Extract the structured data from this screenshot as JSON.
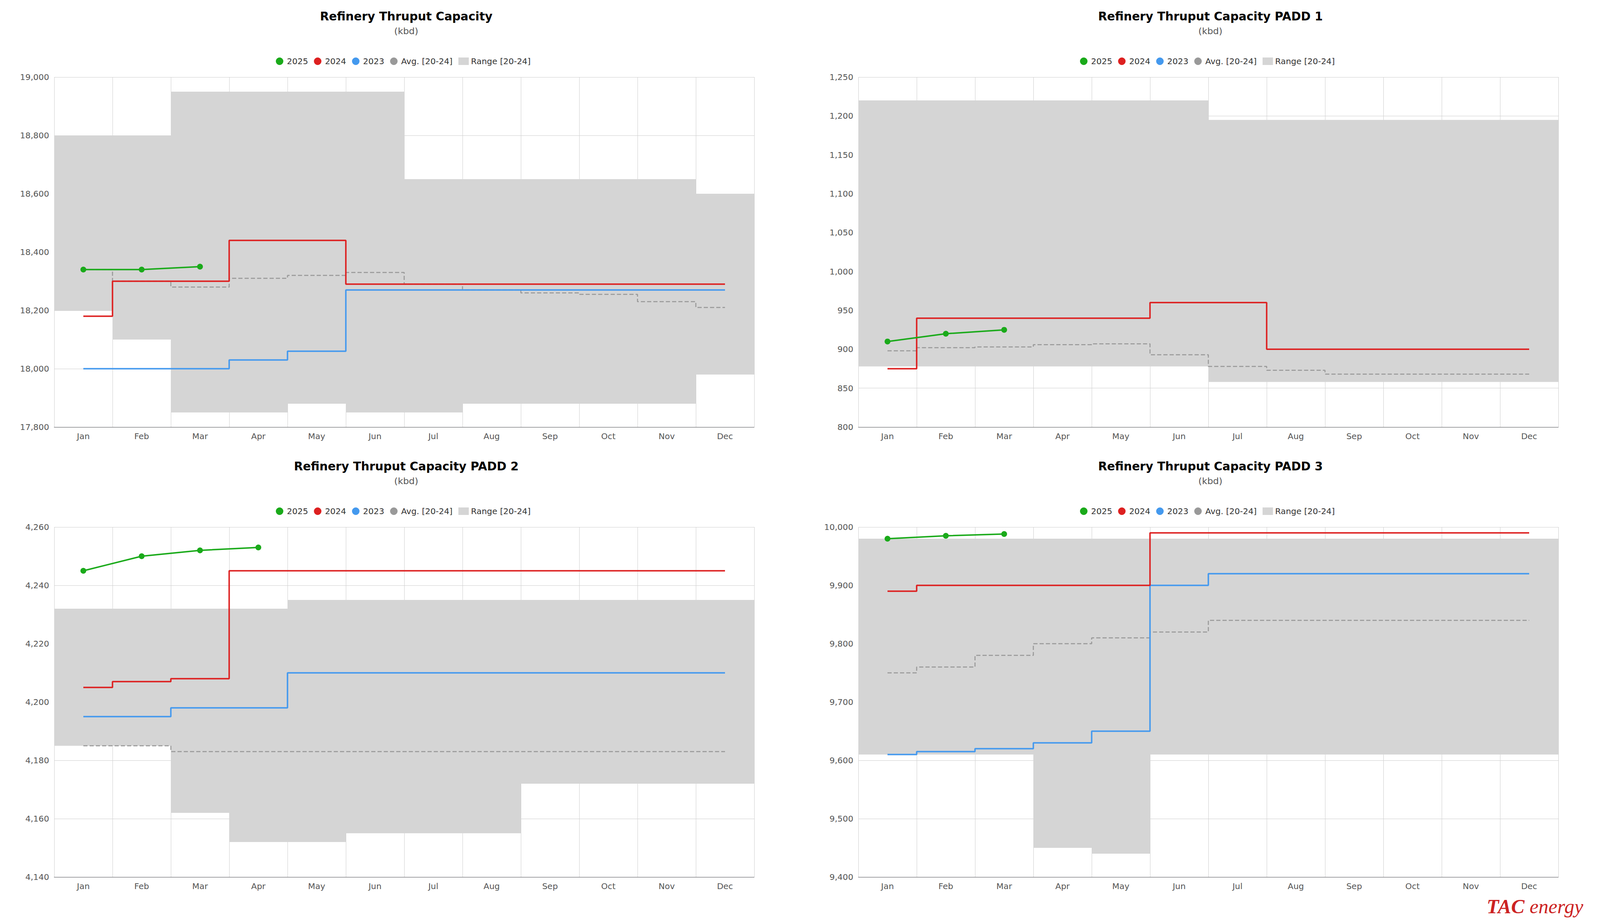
{
  "chart_data": [
    {
      "type": "line",
      "title": "Refinery Thruput Capacity",
      "subtitle": "(kbd)",
      "categories": [
        "Jan",
        "Feb",
        "Mar",
        "Apr",
        "May",
        "Jun",
        "Jul",
        "Aug",
        "Sep",
        "Oct",
        "Nov",
        "Dec"
      ],
      "ylim": [
        17800,
        19000
      ],
      "yticks": [
        {
          "value": 17800,
          "label": "17,800"
        },
        {
          "value": 18000,
          "label": "18,000"
        },
        {
          "value": 18200,
          "label": "18,200"
        },
        {
          "value": 18400,
          "label": "18,400"
        },
        {
          "value": 18600,
          "label": "18,600"
        },
        {
          "value": 18800,
          "label": "18,800"
        },
        {
          "value": 19000,
          "label": "19,000"
        }
      ],
      "grid": true,
      "series": [
        {
          "name": "2025",
          "type": "line",
          "marker": "circle",
          "color": "#1aaa1a",
          "values": [
            18340,
            18340,
            18350,
            null,
            null,
            null,
            null,
            null,
            null,
            null,
            null,
            null
          ]
        },
        {
          "name": "2024",
          "type": "step",
          "color": "#dd2020",
          "values": [
            18180,
            18300,
            18300,
            18440,
            18440,
            18290,
            18290,
            18290,
            18290,
            18290,
            18290,
            18290
          ]
        },
        {
          "name": "2023",
          "type": "step",
          "color": "#4499ee",
          "values": [
            18000,
            18000,
            18000,
            18030,
            18060,
            18270,
            18270,
            18270,
            18270,
            18270,
            18270,
            18270
          ]
        },
        {
          "name": "Avg. [20-24]",
          "type": "step",
          "line_style": "dashed",
          "color": "#999999",
          "values": [
            18340,
            18300,
            18280,
            18310,
            18320,
            18330,
            18290,
            18270,
            18260,
            18255,
            18230,
            18210
          ]
        },
        {
          "name": "Range [20-24]",
          "type": "band",
          "color": "#d5d5d5",
          "low": [
            18200,
            18100,
            17850,
            17850,
            17880,
            17850,
            17850,
            17880,
            17880,
            17880,
            17880,
            17980
          ],
          "high": [
            18800,
            18800,
            18950,
            18950,
            18950,
            18950,
            18650,
            18650,
            18650,
            18650,
            18650,
            18600
          ]
        }
      ]
    },
    {
      "type": "line",
      "title": "Refinery Thruput Capacity PADD 1",
      "subtitle": "(kbd)",
      "categories": [
        "Jan",
        "Feb",
        "Mar",
        "Apr",
        "May",
        "Jun",
        "Jul",
        "Aug",
        "Sep",
        "Oct",
        "Nov",
        "Dec"
      ],
      "ylim": [
        800,
        1250
      ],
      "yticks": [
        800,
        850,
        900,
        950,
        {
          "value": 1000,
          "label": "1,000"
        },
        {
          "value": 1050,
          "label": "1,050"
        },
        {
          "value": 1100,
          "label": "1,100"
        },
        {
          "value": 1150,
          "label": "1,150"
        },
        {
          "value": 1200,
          "label": "1,200"
        },
        {
          "value": 1250,
          "label": "1,250"
        }
      ],
      "grid": true,
      "series": [
        {
          "name": "2025",
          "type": "line",
          "marker": "circle",
          "color": "#1aaa1a",
          "values": [
            910,
            920,
            925,
            null,
            null,
            null,
            null,
            null,
            null,
            null,
            null,
            null
          ]
        },
        {
          "name": "2024",
          "type": "step",
          "color": "#dd2020",
          "values": [
            875,
            940,
            940,
            940,
            940,
            960,
            960,
            900,
            900,
            900,
            900,
            900
          ]
        },
        {
          "name": "2023",
          "type": "step",
          "color": "#4499ee",
          "values": [
            null,
            null,
            null,
            null,
            null,
            null,
            null,
            null,
            null,
            null,
            null,
            null
          ]
        },
        {
          "name": "Avg. [20-24]",
          "type": "step",
          "line_style": "dashed",
          "color": "#999999",
          "values": [
            898,
            902,
            903,
            906,
            907,
            893,
            878,
            873,
            868,
            868,
            868,
            868
          ]
        },
        {
          "name": "Range [20-24]",
          "type": "band",
          "color": "#d5d5d5",
          "low": [
            878,
            878,
            878,
            878,
            878,
            878,
            858,
            858,
            858,
            858,
            858,
            858
          ],
          "high": [
            1220,
            1220,
            1220,
            1220,
            1220,
            1220,
            1195,
            1195,
            1195,
            1195,
            1195,
            1195
          ]
        }
      ]
    },
    {
      "type": "line",
      "title": "Refinery Thruput Capacity PADD 2",
      "subtitle": "(kbd)",
      "categories": [
        "Jan",
        "Feb",
        "Mar",
        "Apr",
        "May",
        "Jun",
        "Jul",
        "Aug",
        "Sep",
        "Oct",
        "Nov",
        "Dec"
      ],
      "ylim": [
        4140,
        4260
      ],
      "yticks": [
        {
          "value": 4140,
          "label": "4,140"
        },
        {
          "value": 4160,
          "label": "4,160"
        },
        {
          "value": 4180,
          "label": "4,180"
        },
        {
          "value": 4200,
          "label": "4,200"
        },
        {
          "value": 4220,
          "label": "4,220"
        },
        {
          "value": 4240,
          "label": "4,240"
        },
        {
          "value": 4260,
          "label": "4,260"
        }
      ],
      "grid": true,
      "series": [
        {
          "name": "2025",
          "type": "line",
          "marker": "circle",
          "color": "#1aaa1a",
          "values": [
            4245,
            4250,
            4252,
            4253,
            null,
            null,
            null,
            null,
            null,
            null,
            null,
            null
          ]
        },
        {
          "name": "2024",
          "type": "step",
          "color": "#dd2020",
          "values": [
            4205,
            4207,
            4208,
            4245,
            4245,
            4245,
            4245,
            4245,
            4245,
            4245,
            4245,
            4245
          ]
        },
        {
          "name": "2023",
          "type": "step",
          "color": "#4499ee",
          "values": [
            4195,
            4195,
            4198,
            4198,
            4210,
            4210,
            4210,
            4210,
            4210,
            4210,
            4210,
            4210
          ]
        },
        {
          "name": "Avg. [20-24]",
          "type": "step",
          "line_style": "dashed",
          "color": "#999999",
          "values": [
            4185,
            4185,
            4183,
            4183,
            4183,
            4183,
            4183,
            4183,
            4183,
            4183,
            4183,
            4183
          ]
        },
        {
          "name": "Range [20-24]",
          "type": "band",
          "color": "#d5d5d5",
          "low": [
            4185,
            4185,
            4162,
            4152,
            4152,
            4155,
            4155,
            4155,
            4172,
            4172,
            4172,
            4172
          ],
          "high": [
            4232,
            4232,
            4232,
            4232,
            4235,
            4235,
            4235,
            4235,
            4235,
            4235,
            4235,
            4235
          ]
        }
      ]
    },
    {
      "type": "line",
      "title": "Refinery Thruput Capacity PADD 3",
      "subtitle": "(kbd)",
      "categories": [
        "Jan",
        "Feb",
        "Mar",
        "Apr",
        "May",
        "Jun",
        "Jul",
        "Aug",
        "Sep",
        "Oct",
        "Nov",
        "Dec"
      ],
      "ylim": [
        9400,
        10000
      ],
      "yticks": [
        {
          "value": 9400,
          "label": "9,400"
        },
        {
          "value": 9500,
          "label": "9,500"
        },
        {
          "value": 9600,
          "label": "9,600"
        },
        {
          "value": 9700,
          "label": "9,700"
        },
        {
          "value": 9800,
          "label": "9,800"
        },
        {
          "value": 9900,
          "label": "9,900"
        },
        {
          "value": 10000,
          "label": "10,000"
        }
      ],
      "grid": true,
      "series": [
        {
          "name": "2025",
          "type": "line",
          "marker": "circle",
          "color": "#1aaa1a",
          "values": [
            9980,
            9985,
            9988,
            null,
            null,
            null,
            null,
            null,
            null,
            null,
            null,
            null
          ]
        },
        {
          "name": "2024",
          "type": "step",
          "color": "#dd2020",
          "values": [
            9890,
            9900,
            9900,
            9900,
            9900,
            9990,
            9990,
            9990,
            9990,
            9990,
            9990,
            9990
          ]
        },
        {
          "name": "2023",
          "type": "step",
          "color": "#4499ee",
          "values": [
            9610,
            9615,
            9620,
            9630,
            9650,
            9900,
            9920,
            9920,
            9920,
            9920,
            9920,
            9920
          ]
        },
        {
          "name": "Avg. [20-24]",
          "type": "step",
          "line_style": "dashed",
          "color": "#999999",
          "values": [
            9750,
            9760,
            9780,
            9800,
            9810,
            9820,
            9840,
            9840,
            9840,
            9840,
            9840,
            9840
          ]
        },
        {
          "name": "Range [20-24]",
          "type": "band",
          "color": "#d5d5d5",
          "low": [
            9610,
            9610,
            9610,
            9450,
            9440,
            9610,
            9610,
            9610,
            9610,
            9610,
            9610,
            9610
          ],
          "high": [
            9980,
            9980,
            9980,
            9980,
            9980,
            9980,
            9980,
            9980,
            9980,
            9980,
            9980,
            9980
          ]
        }
      ],
      "annotations": [
        {
          "text": "TAC",
          "color": "#cc2222"
        },
        {
          "text": "energy",
          "color": "#cc2222"
        }
      ]
    }
  ]
}
